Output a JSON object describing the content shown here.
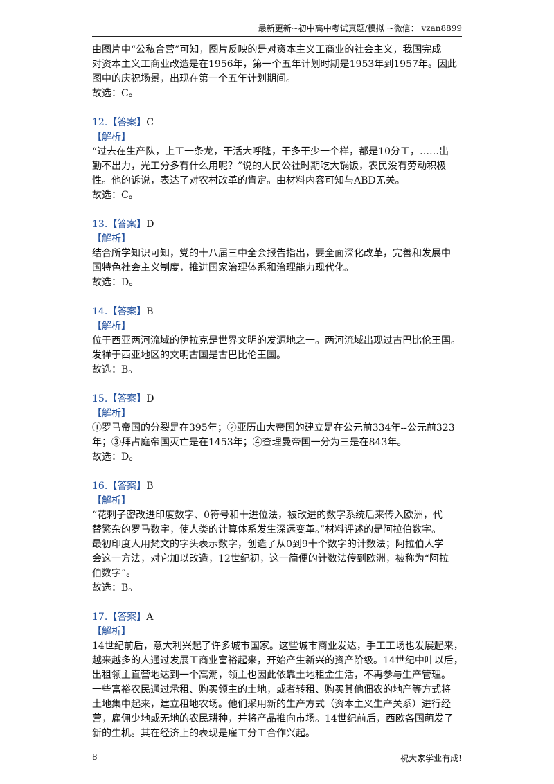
{
  "header": {
    "text": "最新更新~初中高中考试真题/模拟 ~微信： vzan8899"
  },
  "intro": {
    "lines": [
      "由图片中“公私合营”可知，图片反映的是对资本主义工商业的社会主义，我国完成",
      "对资本主义工商业改造是在1956年，第一个五年计划时期是1953年到1957年。因此",
      "图中的庆祝场景，出现在第一个五年计划期间。"
    ],
    "conclusion": "故选：C。"
  },
  "questions": [
    {
      "number": "12.",
      "answer_label": "【答案】",
      "answer": "C",
      "analysis_label": "【解析】",
      "lines": [
        "“过去在生产队，上工一条龙，干活大呼隆，干多干少一个样，都是10分工，……出",
        "勤不出力，光工分多有什么用呢？”说的人民公社时期吃大锅饭，农民没有劳动积极",
        "性。他的诉说，表达了对农村改革的肯定。由材料内容可知与ABD无关。"
      ],
      "conclusion": "故选：C。"
    },
    {
      "number": "13.",
      "answer_label": "【答案】",
      "answer": "D",
      "analysis_label": "【解析】",
      "lines": [
        "结合所学知识可知，党的十八届三中全会报告指出，要全面深化改革，完善和发展中",
        "国特色社会主义制度，推进国家治理体系和治理能力现代化。"
      ],
      "conclusion": "故选：D。"
    },
    {
      "number": "14.",
      "answer_label": "【答案】",
      "answer": "B",
      "analysis_label": "【解析】",
      "lines": [
        "位于西亚两河流域的伊拉克是世界文明的发源地之一。两河流域出现过古巴比伦王国。",
        "发祥于西亚地区的文明古国是古巴比伦王国。"
      ],
      "conclusion": "故选：B。"
    },
    {
      "number": "15.",
      "answer_label": "【答案】",
      "answer": "D",
      "analysis_label": "【解析】",
      "lines": [
        "①罗马帝国的分裂是在395年；②亚历山大帝国的建立是在公元前334年--公元前323",
        "年；③拜占庭帝国灭亡是在1453年；④查理曼帝国一分为三是在843年。"
      ],
      "conclusion": "故选：D。"
    },
    {
      "number": "16.",
      "answer_label": "【答案】",
      "answer": "B",
      "analysis_label": "【解析】",
      "lines": [
        "“花剌子密改进印度数字、0符号和十进位法，被改进的数字系统后来传入欧洲，代",
        "替繁杂的罗马数字，使人类的计算体系发生深远变革。”材料评述的是阿拉伯数字。",
        "最初印度人用梵文的字头表示数字，创造了从0到9十个数字的计数法；阿拉伯人学",
        "会这一方法，对它加以改造，12世纪初，这一简便的计数法传到欧洲，被称为“阿拉",
        "伯数字”。"
      ],
      "conclusion": "故选：B。"
    },
    {
      "number": "17.",
      "answer_label": "【答案】",
      "answer": "A",
      "analysis_label": "【解析】",
      "lines": [
        "14世纪前后，意大利兴起了许多城市国家。这些城市商业发达，手工工场也发展起来，",
        "越来越多的人通过发展工商业富裕起来，开始产生新兴的资产阶级。14世纪中叶以后，",
        "出租领主直营地达到一个高潮，领主也因此依靠土地租金生活，不再参与生产管理。",
        "一些富裕农民通过承租、购买领主的土地，或者转租、购买其他佃农的地产等方式将",
        "土地集中起来，建立租地农场。他们采用新的生产方式（资本主义生产关系）进行经",
        "营，雇佣少地或无地的农民耕种，并将产品推向市场。14世纪前后，西欧各国萌发了",
        "新的生机。其在经济上的表现是雇工分工合作兴起。"
      ]
    }
  ],
  "footer": {
    "page": "8",
    "text": "祝大家学业有成!"
  }
}
